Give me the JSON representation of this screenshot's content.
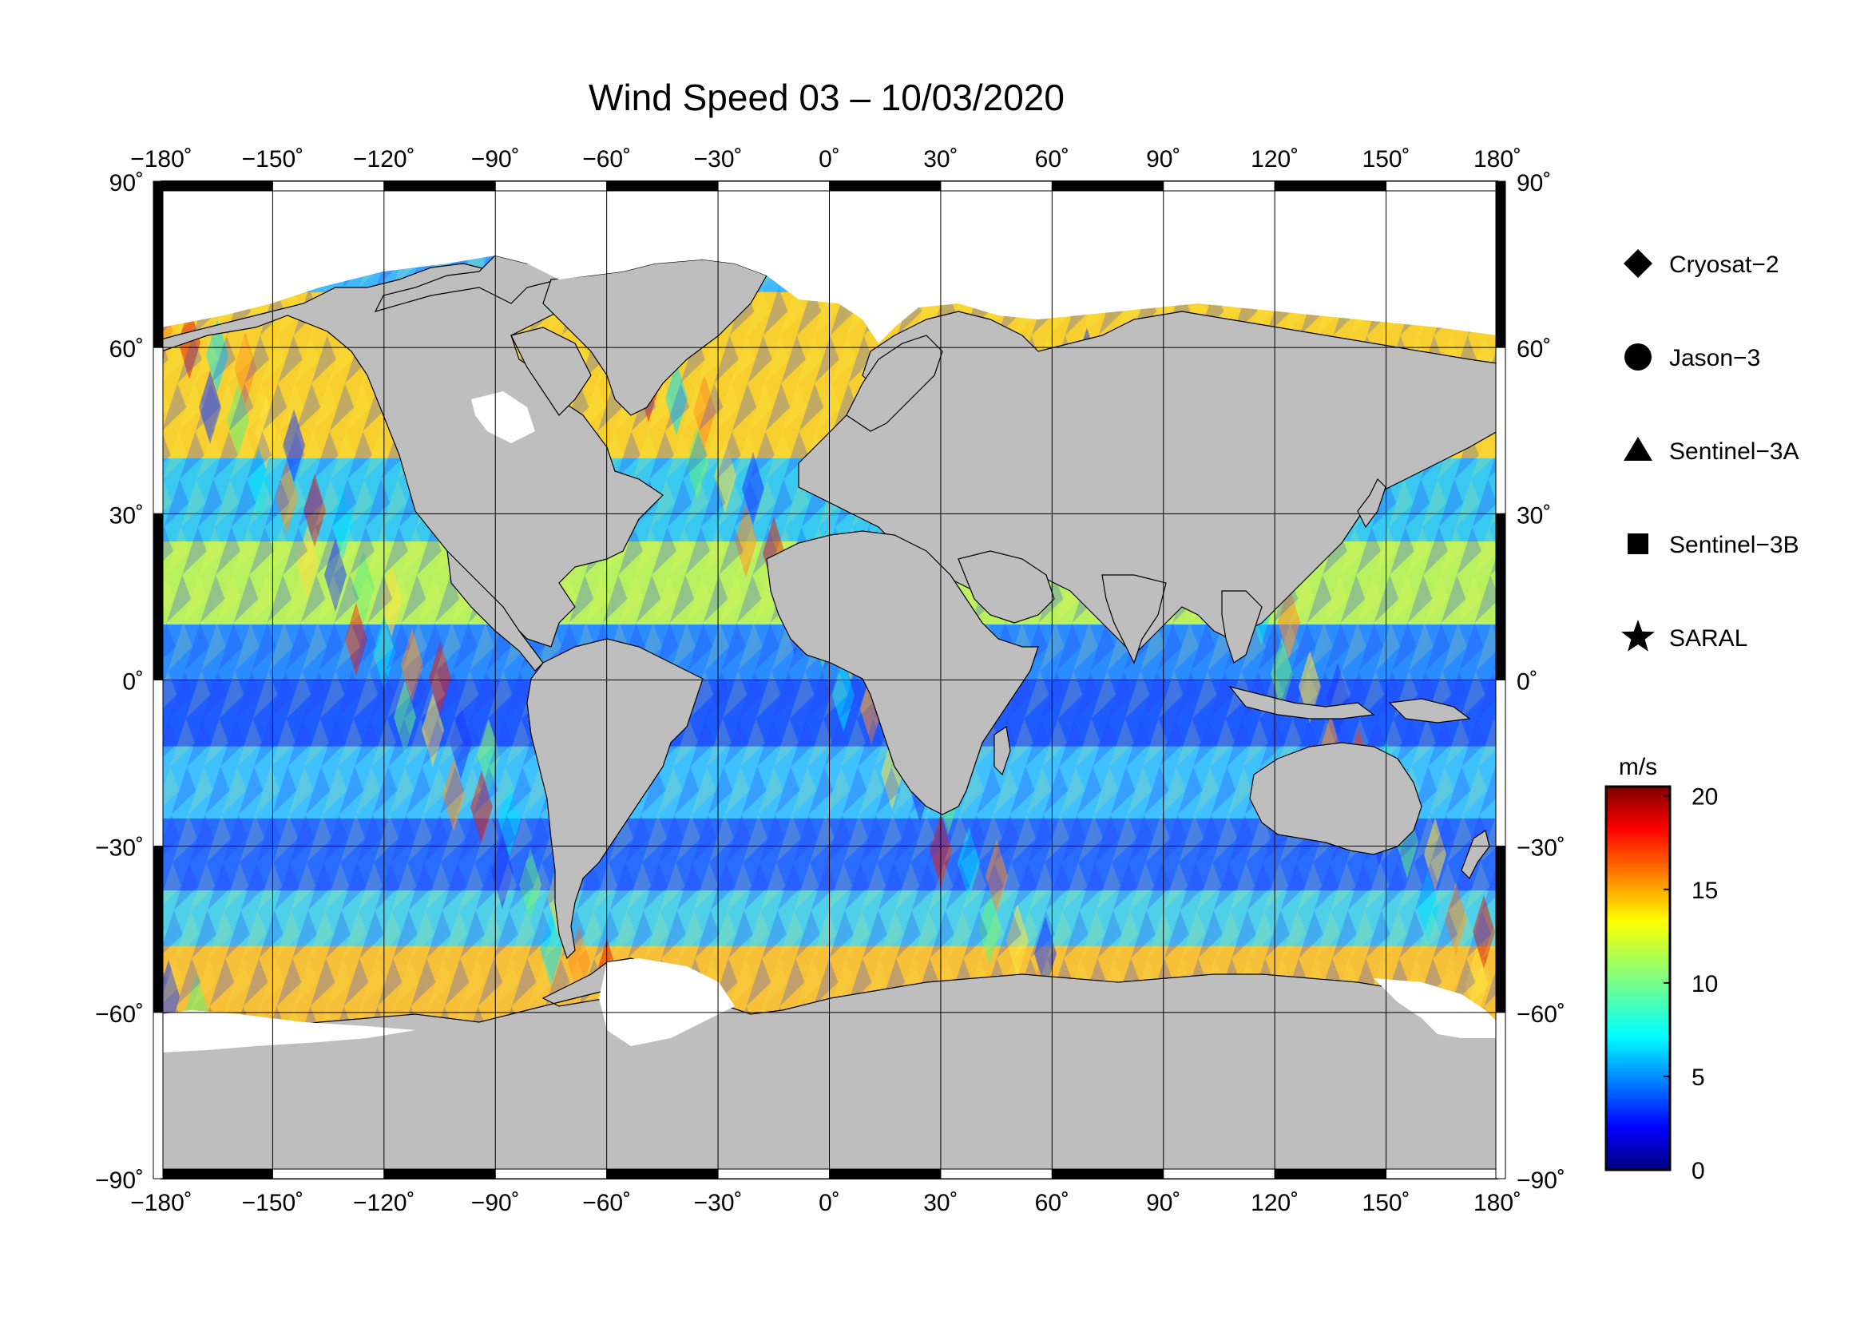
{
  "title": "Wind Speed 03 – 10/03/2020",
  "map": {
    "projection": "equirectangular",
    "lon_range": [
      -180,
      180
    ],
    "lat_range": [
      -90,
      90
    ],
    "lon_ticks": [
      -180,
      -150,
      -120,
      -90,
      -60,
      -30,
      0,
      30,
      60,
      90,
      120,
      150,
      180
    ],
    "lat_ticks": [
      90,
      60,
      30,
      0,
      -30,
      -60,
      -90
    ],
    "lon_tick_labels": [
      "−180˚",
      "−150˚",
      "−120˚",
      "−90˚",
      "−60˚",
      "−30˚",
      "0˚",
      "30˚",
      "60˚",
      "90˚",
      "120˚",
      "150˚",
      "180˚"
    ],
    "lat_tick_labels": [
      "90˚",
      "60˚",
      "30˚",
      "0˚",
      "−30˚",
      "−60˚",
      "−90˚"
    ],
    "land_color": "#bebebe",
    "ice_color": "#ffffff",
    "grid": true
  },
  "legend": {
    "items": [
      {
        "label": "Cryosat−2",
        "marker": "diamond"
      },
      {
        "label": "Jason−3",
        "marker": "circle"
      },
      {
        "label": "Sentinel−3A",
        "marker": "triangle"
      },
      {
        "label": "Sentinel−3B",
        "marker": "square"
      },
      {
        "label": "SARAL",
        "marker": "star"
      }
    ]
  },
  "colorbar": {
    "unit": "m/s",
    "min": 0,
    "max": 20.5,
    "ticks": [
      0,
      5,
      10,
      15,
      20
    ],
    "tick_labels": [
      "0",
      "5",
      "10",
      "15",
      "20"
    ],
    "colormap": "jet",
    "colors": [
      "#00007f",
      "#0000ff",
      "#007fff",
      "#00ffff",
      "#7fff7f",
      "#ffff00",
      "#ff7f00",
      "#ff0000",
      "#7f0000"
    ]
  }
}
